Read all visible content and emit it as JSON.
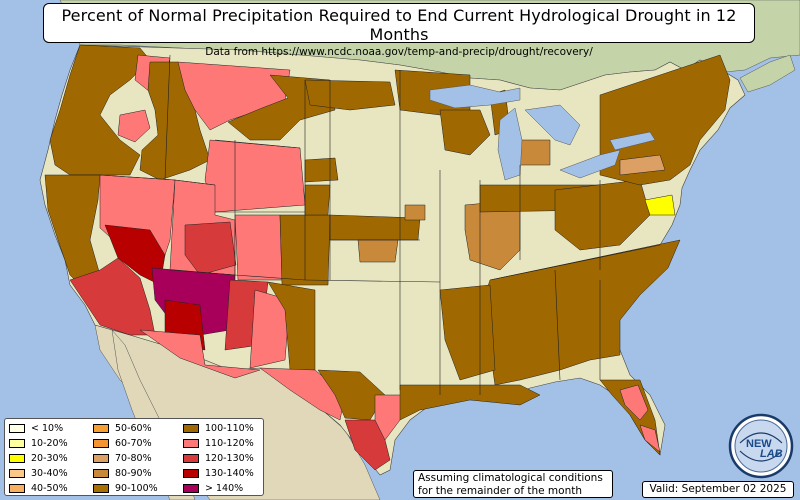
{
  "header": {
    "title": "Percent of Normal Precipitation Required to End Current Hydrological Drought in 12 Months",
    "subtitle": "Data from https://www.ncdc.noaa.gov/temp-and-precip/drought/recovery/"
  },
  "legend": {
    "items": [
      {
        "label": "< 10%",
        "color": "#ffffe8"
      },
      {
        "label": "10-20%",
        "color": "#ffffa0"
      },
      {
        "label": "20-30%",
        "color": "#ffff00"
      },
      {
        "label": "30-40%",
        "color": "#fcc88a"
      },
      {
        "label": "40-50%",
        "color": "#f8b060"
      },
      {
        "label": "50-60%",
        "color": "#f6a033"
      },
      {
        "label": "60-70%",
        "color": "#f49531"
      },
      {
        "label": "70-80%",
        "color": "#dca064"
      },
      {
        "label": "80-90%",
        "color": "#c8893a"
      },
      {
        "label": "90-100%",
        "color": "#a87000"
      },
      {
        "label": "100-110%",
        "color": "#a06800"
      },
      {
        "label": "110-120%",
        "color": "#ff7878"
      },
      {
        "label": "120-130%",
        "color": "#d63a3a"
      },
      {
        "label": "130-140%",
        "color": "#b80000"
      },
      {
        "label": "> 140%",
        "color": "#a8005a"
      }
    ]
  },
  "note": {
    "line1": "Assuming climatological conditions",
    "line2": "for the remainder of the month"
  },
  "valid": {
    "text": "Valid: September 02 2025"
  },
  "logo": {
    "line1": "NEW",
    "line2": "LAB"
  },
  "colors": {
    "ocean": "#a3c1e6",
    "land_base": "#e8e6c0",
    "canada": "#c4d4a8",
    "mexico": "#e0d8b8",
    "lakes": "#a3c1e6"
  }
}
